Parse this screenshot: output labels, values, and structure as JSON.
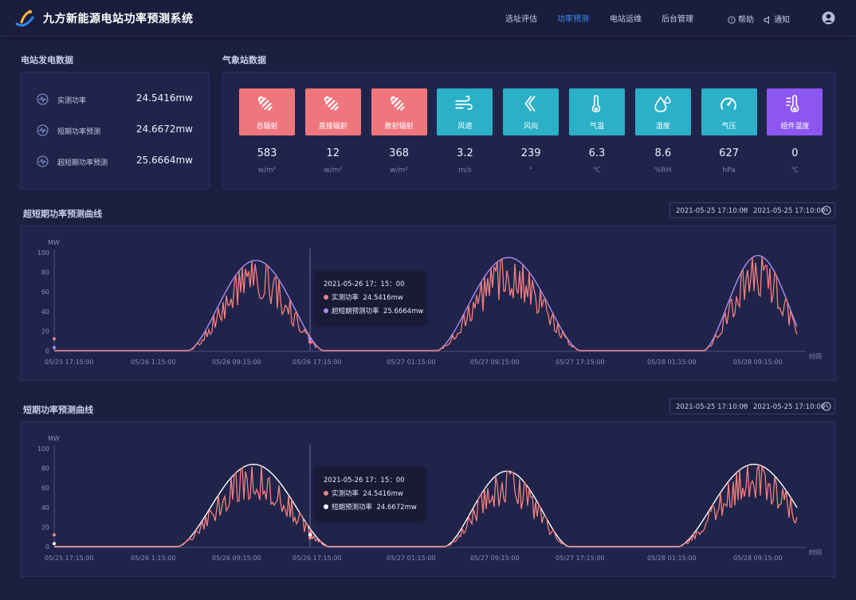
{
  "header": {
    "title": "九方新能源电站功率预测系统",
    "nav": [
      {
        "label": "选址评估",
        "active": false
      },
      {
        "label": "功率预测",
        "active": true
      },
      {
        "label": "电站运维",
        "active": false
      },
      {
        "label": "后台管理",
        "active": false
      }
    ],
    "help_label": "帮助",
    "notify_label": "通知",
    "colors": {
      "accent": "#3d8ef5",
      "background": "#1c1f40"
    }
  },
  "generation": {
    "title": "电站发电数据",
    "rows": [
      {
        "label": "实测功率",
        "value": "24.5416mw",
        "icon": "pulse-icon"
      },
      {
        "label": "短期功率预测",
        "value": "24.6672mw",
        "icon": "pulse-icon"
      },
      {
        "label": "超短期功率预测",
        "value": "25.6664mw",
        "icon": "pulse-icon"
      }
    ]
  },
  "weather": {
    "title": "气象站数据",
    "tiles": [
      {
        "label": "总辐射",
        "value": "583",
        "unit": "w/m²",
        "color": "red",
        "icon": "radiation-icon"
      },
      {
        "label": "直接辐射",
        "value": "12",
        "unit": "w/m²",
        "color": "red",
        "icon": "radiation-icon"
      },
      {
        "label": "散射辐射",
        "value": "368",
        "unit": "w/m²",
        "color": "red",
        "icon": "radiation-icon"
      },
      {
        "label": "风速",
        "value": "3.2",
        "unit": "m/s",
        "color": "teal",
        "icon": "wind-icon"
      },
      {
        "label": "风向",
        "value": "239",
        "unit": "°",
        "color": "teal",
        "icon": "wind-direction-icon"
      },
      {
        "label": "气温",
        "value": "6.3",
        "unit": "℃",
        "color": "teal",
        "icon": "thermometer-icon"
      },
      {
        "label": "湿度",
        "value": "8.6",
        "unit": "%RH",
        "color": "teal",
        "icon": "humidity-icon"
      },
      {
        "label": "气压",
        "value": "627",
        "unit": "hPa",
        "color": "teal",
        "icon": "gauge-icon"
      },
      {
        "label": "组件温度",
        "value": "0",
        "unit": "℃",
        "color": "purple",
        "icon": "module-temp-icon"
      }
    ]
  },
  "chart_data": [
    {
      "type": "line",
      "title": "超短期功率预测曲线",
      "date_range": {
        "start": "2021-05-25 17:10:00",
        "separator": "~",
        "end": "2021-05-25 17:10:00"
      },
      "ylabel": "MW",
      "xlabel": "时间",
      "ylim": [
        0,
        100
      ],
      "yticks": [
        "100",
        "80",
        "60",
        "40",
        "20",
        "0"
      ],
      "xticks": [
        "05/25  17:15:00",
        "05/26  1:15:00",
        "05/26  09:15:00",
        "05/26  17:15:00",
        "05/27  01:15:00",
        "05/27  09:15:00",
        "05/27  17:15:00",
        "05/28  01:15:00",
        "05/28  09:15:00"
      ],
      "series": [
        {
          "name": "实测功率",
          "color": "#f3807e"
        },
        {
          "name": "超短期预测功率",
          "color": "#a98cf5"
        }
      ],
      "tooltip": {
        "time": "2021-05-26  17：15：00",
        "rows": [
          {
            "label": "实测功率",
            "value": "24.5416mw",
            "color": "#f3807e"
          },
          {
            "label": "超短期预测功率",
            "value": "25.6664mw",
            "color": "#a98cf5"
          }
        ]
      }
    },
    {
      "type": "line",
      "title": "短期功率预测曲线",
      "date_range": {
        "start": "2021-05-25 17:10:00",
        "separator": "~",
        "end": "2021-05-25 17:10:00"
      },
      "ylabel": "MW",
      "xlabel": "时间",
      "ylim": [
        0,
        100
      ],
      "yticks": [
        "100",
        "80",
        "60",
        "40",
        "20",
        "0"
      ],
      "xticks": [
        "05/25  17:15:00",
        "05/26  1:15:00",
        "05/26  09:15:00",
        "05/26  17:15:00",
        "05/27  01:15:00",
        "05/27  09:15:00",
        "05/27  17:15:00",
        "05/28  01:15:00",
        "05/28  09:15:00"
      ],
      "series": [
        {
          "name": "实测功率",
          "color": "#f3807e"
        },
        {
          "name": "短期预测功率",
          "color": "#ffffff"
        }
      ],
      "tooltip": {
        "time": "2021-05-26  17：15：00",
        "rows": [
          {
            "label": "实测功率",
            "value": "24.5416mw",
            "color": "#f3807e"
          },
          {
            "label": "短期预测功率",
            "value": "24.6672mw",
            "color": "#ffffff"
          }
        ]
      }
    }
  ]
}
